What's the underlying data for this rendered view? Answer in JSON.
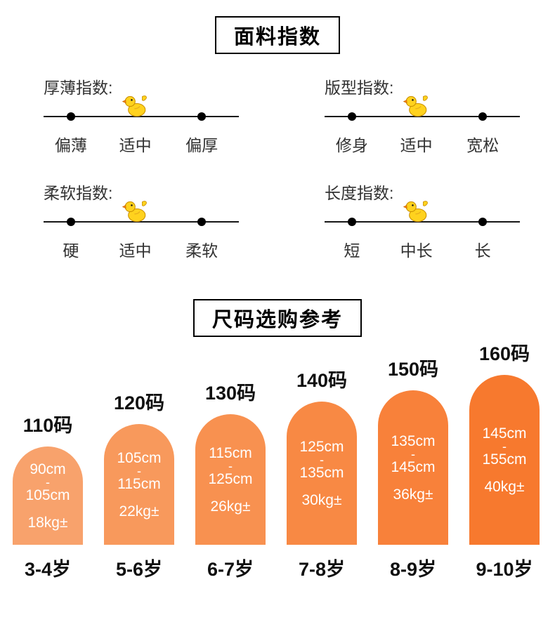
{
  "fabric_index": {
    "title": "面料指数",
    "marker_icon": "rubber-duck",
    "scales": [
      {
        "name": "厚薄指数:",
        "ticks": [
          "偏薄",
          "适中",
          "偏厚"
        ],
        "duck_at": "适中"
      },
      {
        "name": "版型指数:",
        "ticks": [
          "修身",
          "适中",
          "宽松"
        ],
        "duck_at": "适中"
      },
      {
        "name": "柔软指数:",
        "ticks": [
          "硬",
          "适中",
          "柔软"
        ],
        "duck_at": "适中"
      },
      {
        "name": "长度指数:",
        "ticks": [
          "短",
          "中长",
          "长"
        ],
        "duck_at": "中长"
      }
    ]
  },
  "size_guide": {
    "title": "尺码选购参考",
    "dash": "-",
    "sizes": [
      {
        "code": "110码",
        "height_min": "90cm",
        "height_max": "105cm",
        "weight": "18kg±",
        "age": "3-4岁",
        "color": "#F8A26C",
        "arch_height": 140
      },
      {
        "code": "120码",
        "height_min": "105cm",
        "height_max": "115cm",
        "weight": "22kg±",
        "age": "5-6岁",
        "color": "#F8995C",
        "arch_height": 172
      },
      {
        "code": "130码",
        "height_min": "115cm",
        "height_max": "125cm",
        "weight": "26kg±",
        "age": "6-7岁",
        "color": "#F89150",
        "arch_height": 186
      },
      {
        "code": "140码",
        "height_min": "125cm",
        "height_max": "135cm",
        "weight": "30kg±",
        "age": "7-8岁",
        "color": "#F88944",
        "arch_height": 204
      },
      {
        "code": "150码",
        "height_min": "135cm",
        "height_max": "145cm",
        "weight": "36kg±",
        "age": "8-9岁",
        "color": "#F8813A",
        "arch_height": 220
      },
      {
        "code": "160码",
        "height_min": "145cm",
        "height_max": "155cm",
        "weight": "40kg±",
        "age": "9-10岁",
        "color": "#F7792E",
        "arch_height": 242
      }
    ]
  },
  "colors": {
    "background": "#FFFFFF",
    "line": "#161616",
    "duck_body": "#FFD21E",
    "duck_beak": "#F5820B"
  }
}
